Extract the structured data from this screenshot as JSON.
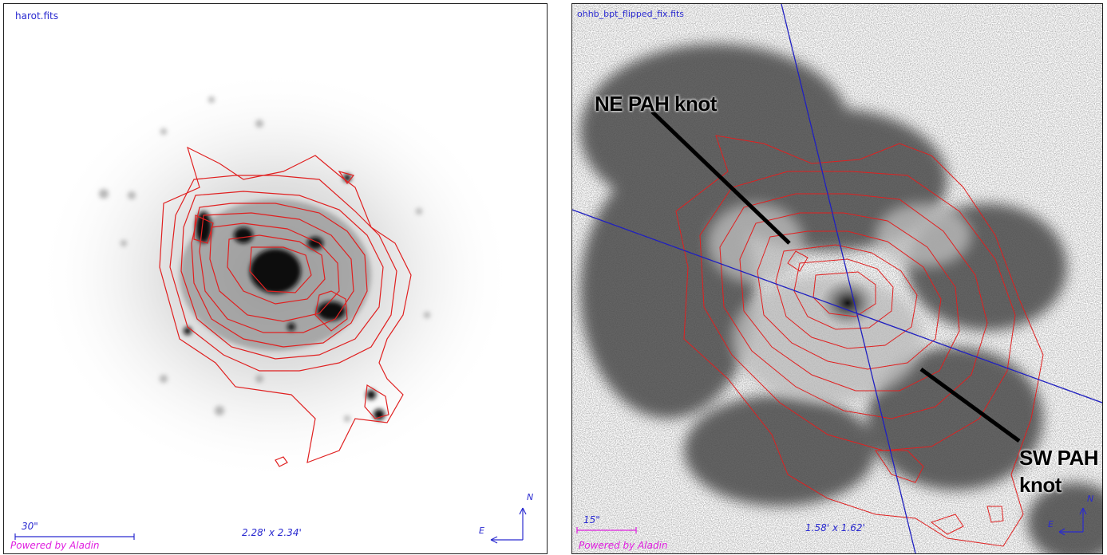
{
  "left_panel": {
    "file_name": "harot.fits",
    "scale_label": "30\"",
    "size_label": "2.28' x 2.34'",
    "north_label": "N",
    "east_label": "E",
    "powered_by": "Powered by Aladin"
  },
  "right_panel": {
    "file_name": "ohhb_bpt_flipped_fix.fits",
    "scale_label": "15\"",
    "size_label": "1.58' x 1.62'",
    "north_label": "N",
    "east_label": "E",
    "powered_by": "Powered by Aladin",
    "annotation_ne": "NE PAH knot",
    "annotation_sw_line1": "SW PAH",
    "annotation_sw_line2": "knot"
  },
  "colors": {
    "contour": "#e02020",
    "axis_line": "#2020c0",
    "overlay_text": "#2a2ad0",
    "powered_text": "#e020e0"
  }
}
